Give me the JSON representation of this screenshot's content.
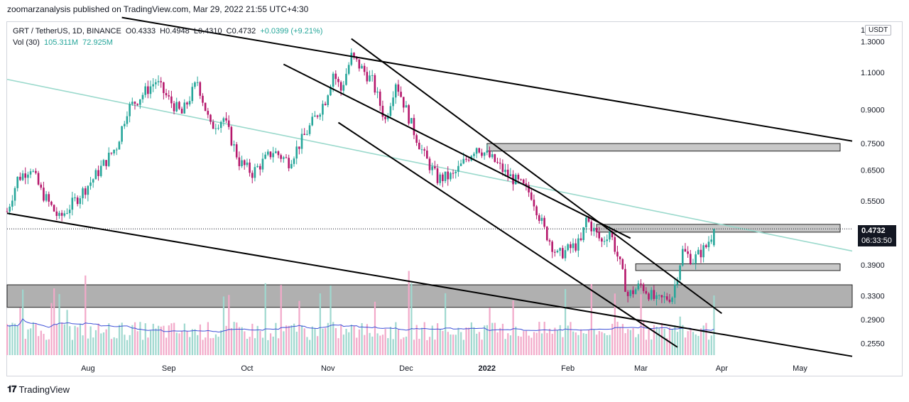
{
  "publisher_line": "zoomarzanalysis published on TradingView.com, Mar 29, 2022 21:55 UTC+4:30",
  "brand": {
    "name": "TradingView"
  },
  "legend": {
    "symbol": "GRT / TetherUS, 1D, BINANCE",
    "open": "O0.4333",
    "high": "H0.4948",
    "low": "L0.4310",
    "close": "C0.4732",
    "change": "+0.0399 (+9.21%)",
    "vol_label": "Vol (30)",
    "vol_value": "105.311M",
    "vol_ma": "72.925M"
  },
  "currency": "USDT",
  "last_price_tag": {
    "price": "0.4732",
    "countdown": "06:33:50"
  },
  "colors": {
    "up": "#26a69a",
    "down": "#b5176b",
    "zone": "#a8a8a8",
    "trend": "#000000",
    "regression": "#9ad9cc",
    "vol_ma": "#3f51d8"
  },
  "chart_data": {
    "type": "candlestick",
    "symbol": "GRT/USDT",
    "timeframe": "1D",
    "y_scale": "log",
    "y_ticks": [
      1.3,
      1.1,
      0.9,
      0.75,
      0.65,
      0.55,
      0.47,
      0.39,
      0.33,
      0.29,
      0.255
    ],
    "y_tick_labels": [
      "1.3000",
      "1.1000",
      "0.9000",
      "0.7500",
      "0.6500",
      "0.5500",
      "0.4700",
      "0.3900",
      "0.3300",
      "0.2900",
      "0.2550"
    ],
    "y_top_partial_label": "1",
    "x_ticks": [
      "Aug",
      "Sep",
      "Oct",
      "Nov",
      "Dec",
      "2022",
      "Feb",
      "Mar",
      "Apr",
      "May"
    ],
    "x_tick_dates": [
      "2021-08-01",
      "2021-09-01",
      "2021-10-01",
      "2021-11-01",
      "2021-12-01",
      "2022-01-01",
      "2022-02-01",
      "2022-03-01",
      "2022-04-01",
      "2022-05-01"
    ],
    "x_range": [
      "2021-07-01",
      "2022-05-21"
    ],
    "y_range": [
      0.235,
      1.45
    ],
    "last_price": 0.4732,
    "path_anchors": [
      {
        "date": "2021-07-01",
        "price": 0.52
      },
      {
        "date": "2021-07-05",
        "price": 0.62
      },
      {
        "date": "2021-07-10",
        "price": 0.66
      },
      {
        "date": "2021-07-14",
        "price": 0.58
      },
      {
        "date": "2021-07-21",
        "price": 0.5
      },
      {
        "date": "2021-07-28",
        "price": 0.56
      },
      {
        "date": "2021-08-03",
        "price": 0.62
      },
      {
        "date": "2021-08-12",
        "price": 0.74
      },
      {
        "date": "2021-08-16",
        "price": 0.9
      },
      {
        "date": "2021-08-27",
        "price": 1.05
      },
      {
        "date": "2021-09-01",
        "price": 0.95
      },
      {
        "date": "2021-09-06",
        "price": 0.88
      },
      {
        "date": "2021-09-12",
        "price": 1.05
      },
      {
        "date": "2021-09-17",
        "price": 0.82
      },
      {
        "date": "2021-09-22",
        "price": 0.86
      },
      {
        "date": "2021-09-28",
        "price": 0.68
      },
      {
        "date": "2021-10-03",
        "price": 0.64
      },
      {
        "date": "2021-10-11",
        "price": 0.72
      },
      {
        "date": "2021-10-17",
        "price": 0.68
      },
      {
        "date": "2021-10-24",
        "price": 0.8
      },
      {
        "date": "2021-10-31",
        "price": 0.95
      },
      {
        "date": "2021-11-03",
        "price": 1.1
      },
      {
        "date": "2021-11-06",
        "price": 1.0
      },
      {
        "date": "2021-11-10",
        "price": 1.2
      },
      {
        "date": "2021-11-18",
        "price": 1.05
      },
      {
        "date": "2021-11-23",
        "price": 0.85
      },
      {
        "date": "2021-11-27",
        "price": 1.05
      },
      {
        "date": "2021-12-04",
        "price": 0.8
      },
      {
        "date": "2021-12-08",
        "price": 0.7
      },
      {
        "date": "2021-12-13",
        "price": 0.62
      },
      {
        "date": "2021-12-19",
        "price": 0.63
      },
      {
        "date": "2021-12-28",
        "price": 0.74
      },
      {
        "date": "2022-01-04",
        "price": 0.68
      },
      {
        "date": "2022-01-08",
        "price": 0.64
      },
      {
        "date": "2022-01-14",
        "price": 0.6
      },
      {
        "date": "2022-01-18",
        "price": 0.57
      },
      {
        "date": "2022-01-23",
        "price": 0.47
      },
      {
        "date": "2022-01-28",
        "price": 0.41
      },
      {
        "date": "2022-02-06",
        "price": 0.44
      },
      {
        "date": "2022-02-08",
        "price": 0.5
      },
      {
        "date": "2022-02-14",
        "price": 0.44
      },
      {
        "date": "2022-02-17",
        "price": 0.47
      },
      {
        "date": "2022-02-21",
        "price": 0.39
      },
      {
        "date": "2022-02-24",
        "price": 0.33
      },
      {
        "date": "2022-03-01",
        "price": 0.35
      },
      {
        "date": "2022-03-07",
        "price": 0.32
      },
      {
        "date": "2022-03-13",
        "price": 0.33
      },
      {
        "date": "2022-03-17",
        "price": 0.42
      },
      {
        "date": "2022-03-21",
        "price": 0.4
      },
      {
        "date": "2022-03-26",
        "price": 0.43
      },
      {
        "date": "2022-03-29",
        "price": 0.4732
      }
    ],
    "zones": [
      {
        "from": "2021-07-01",
        "to": "2022-05-21",
        "low": 0.31,
        "high": 0.35
      },
      {
        "from": "2022-01-01",
        "to": "2022-05-21",
        "low": 0.72,
        "high": 0.75
      },
      {
        "from": "2022-02-12",
        "to": "2022-05-21",
        "low": 0.465,
        "high": 0.485
      },
      {
        "from": "2022-02-27",
        "to": "2022-05-21",
        "low": 0.378,
        "high": 0.392
      }
    ],
    "trendlines": [
      {
        "from": {
          "date": "2021-07-01",
          "price": 0.515
        },
        "to": {
          "date": "2022-05-21",
          "price": 0.238
        }
      },
      {
        "from": {
          "date": "2021-08-14",
          "price": 1.48
        },
        "to": {
          "date": "2022-05-21",
          "price": 0.76
        }
      },
      {
        "from": {
          "date": "2021-11-10",
          "price": 1.32
        },
        "to": {
          "date": "2022-04-01",
          "price": 0.3
        }
      },
      {
        "from": {
          "date": "2021-11-05",
          "price": 0.84
        },
        "to": {
          "date": "2022-03-15",
          "price": 0.25
        }
      },
      {
        "from": {
          "date": "2021-10-15",
          "price": 1.15
        },
        "to": {
          "date": "2022-02-25",
          "price": 0.45
        }
      }
    ],
    "trendline_styles": [
      "solid",
      "solid",
      "solid",
      "solid",
      "solid"
    ],
    "regression_line": {
      "from": {
        "date": "2021-07-01",
        "price": 1.06
      },
      "to": {
        "date": "2022-05-21",
        "price": 0.42
      }
    },
    "volume": {
      "label": "Vol (30)",
      "last": "105.311M",
      "ma": "72.925M"
    }
  }
}
